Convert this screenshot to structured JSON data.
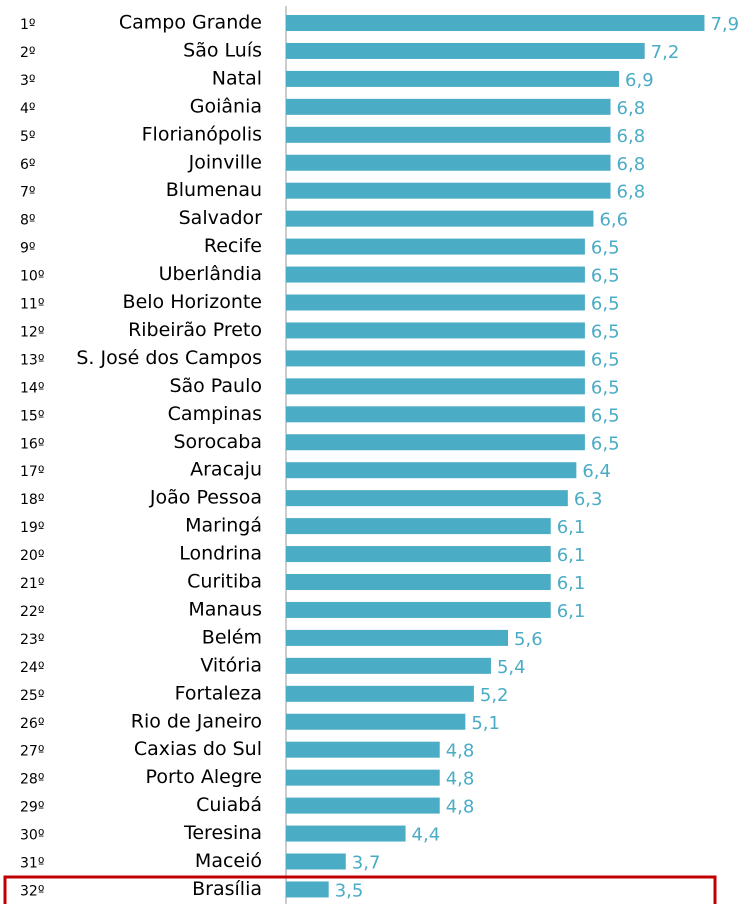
{
  "chart_data": {
    "type": "barh",
    "ranks": [
      "1º",
      "2º",
      "3º",
      "4º",
      "5º",
      "6º",
      "7º",
      "8º",
      "9º",
      "10º",
      "11º",
      "12º",
      "13º",
      "14º",
      "15º",
      "16º",
      "17º",
      "18º",
      "19º",
      "20º",
      "21º",
      "22º",
      "23º",
      "24º",
      "25º",
      "26º",
      "27º",
      "28º",
      "29º",
      "30º",
      "31º",
      "32º"
    ],
    "categories": [
      "Campo Grande",
      "São Luís",
      "Natal",
      "Goiânia",
      "Florianópolis",
      "Joinville",
      "Blumenau",
      "Salvador",
      "Recife",
      "Uberlândia",
      "Belo Horizonte",
      "Ribeirão Preto",
      "S. José dos Campos",
      "São Paulo",
      "Campinas",
      "Sorocaba",
      "Aracaju",
      "João Pessoa",
      "Maringá",
      "Londrina",
      "Curitiba",
      "Manaus",
      "Belém",
      "Vitória",
      "Fortaleza",
      "Rio de Janeiro",
      "Caxias do Sul",
      "Porto Alegre",
      "Cuiabá",
      "Teresina",
      "Maceió",
      "Brasília"
    ],
    "values": [
      7.9,
      7.2,
      6.9,
      6.8,
      6.8,
      6.8,
      6.8,
      6.6,
      6.5,
      6.5,
      6.5,
      6.5,
      6.5,
      6.5,
      6.5,
      6.5,
      6.4,
      6.3,
      6.1,
      6.1,
      6.1,
      6.1,
      5.6,
      5.4,
      5.2,
      5.1,
      4.8,
      4.8,
      4.8,
      4.4,
      3.7,
      3.5
    ],
    "value_labels": [
      "7,9",
      "7,2",
      "6,9",
      "6,8",
      "6,8",
      "6,8",
      "6,8",
      "6,6",
      "6,5",
      "6,5",
      "6,5",
      "6,5",
      "6,5",
      "6,5",
      "6,5",
      "6,5",
      "6,4",
      "6,3",
      "6,1",
      "6,1",
      "6,1",
      "6,1",
      "5,6",
      "5,4",
      "5,2",
      "5,1",
      "4,8",
      "4,8",
      "4,8",
      "4,4",
      "3,7",
      "3,5"
    ],
    "color": "#4bacc6",
    "xlim": [
      3,
      8
    ]
  }
}
